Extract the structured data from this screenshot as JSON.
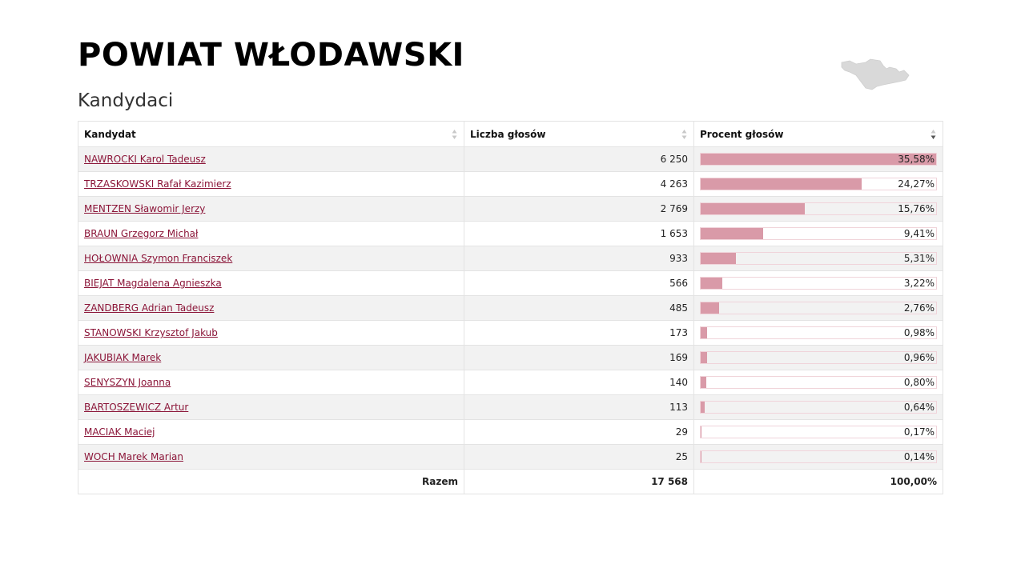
{
  "page": {
    "title": "POWIAT WŁODAWSKI",
    "subtitle": "Kandydaci"
  },
  "table": {
    "headers": {
      "candidate": "Kandydat",
      "votes": "Liczba głosów",
      "percent": "Procent głosów"
    },
    "rows": [
      {
        "name": "NAWROCKI Karol Tadeusz",
        "votes": "6 250",
        "percent": "35,58%",
        "share": 35.58
      },
      {
        "name": "TRZASKOWSKI Rafał Kazimierz",
        "votes": "4 263",
        "percent": "24,27%",
        "share": 24.27
      },
      {
        "name": "MENTZEN Sławomir Jerzy",
        "votes": "2 769",
        "percent": "15,76%",
        "share": 15.76
      },
      {
        "name": "BRAUN Grzegorz Michał",
        "votes": "1 653",
        "percent": "9,41%",
        "share": 9.41
      },
      {
        "name": "HOŁOWNIA Szymon Franciszek",
        "votes": "933",
        "percent": "5,31%",
        "share": 5.31
      },
      {
        "name": "BIEJAT Magdalena Agnieszka",
        "votes": "566",
        "percent": "3,22%",
        "share": 3.22
      },
      {
        "name": "ZANDBERG Adrian Tadeusz",
        "votes": "485",
        "percent": "2,76%",
        "share": 2.76
      },
      {
        "name": "STANOWSKI Krzysztof Jakub",
        "votes": "173",
        "percent": "0,98%",
        "share": 0.98
      },
      {
        "name": "JAKUBIAK Marek",
        "votes": "169",
        "percent": "0,96%",
        "share": 0.96
      },
      {
        "name": "SENYSZYN Joanna",
        "votes": "140",
        "percent": "0,80%",
        "share": 0.8
      },
      {
        "name": "BARTOSZEWICZ Artur",
        "votes": "113",
        "percent": "0,64%",
        "share": 0.64
      },
      {
        "name": "MACIAK Maciej",
        "votes": "29",
        "percent": "0,17%",
        "share": 0.17
      },
      {
        "name": "WOCH Marek Marian",
        "votes": "25",
        "percent": "0,14%",
        "share": 0.14
      }
    ],
    "footer": {
      "label": "Razem",
      "votes": "17 568",
      "percent": "100,00%"
    },
    "max_share": 35.58
  },
  "colors": {
    "link": "#8b1538",
    "bar_fill": "#d99aa8",
    "bar_border": "#f0d4da",
    "stripe": "#f2f2f2",
    "map": "#d9d9d9"
  },
  "icons": {
    "sort": "sort-both-icon",
    "sort_active": "sort-desc-icon",
    "map": "district-map-icon"
  }
}
